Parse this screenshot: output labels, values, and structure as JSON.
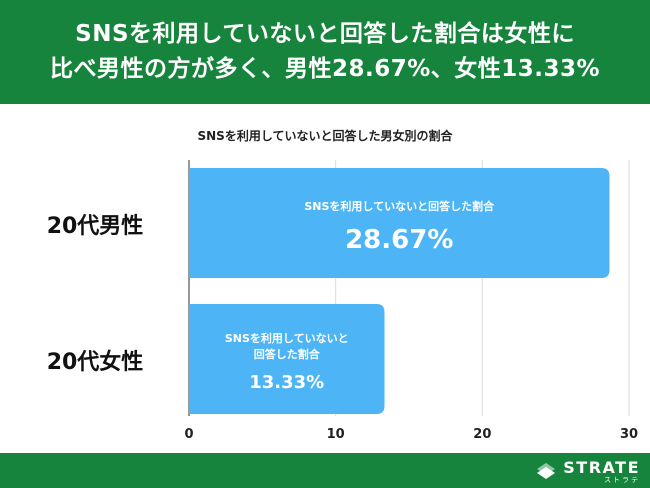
{
  "header": {
    "line1": "SNSを利用していないと回答した割合は女性に",
    "line2": "比べ男性の方が多く、男性28.67%、女性13.33%"
  },
  "chart_data": {
    "type": "bar",
    "orientation": "horizontal",
    "title": "SNSを利用していないと回答した男女別の割合",
    "categories": [
      "20代男性",
      "20代女性"
    ],
    "values": [
      28.67,
      13.33
    ],
    "bar_labels": [
      {
        "caption_lines": [
          "SNSを利用していないと回答した割合"
        ],
        "value_text": "28.67%"
      },
      {
        "caption_lines": [
          "SNSを利用していないと",
          "回答した割合"
        ],
        "value_text": "13.33%"
      }
    ],
    "xlim": [
      0,
      30
    ],
    "xticks": [
      0,
      10,
      20,
      30
    ],
    "grid": true,
    "bar_color": "#4db4f5",
    "xlabel": "",
    "ylabel": ""
  },
  "footer": {
    "logo_main": "STRATE",
    "logo_sub": "ストラテ",
    "color": "#16843d"
  }
}
